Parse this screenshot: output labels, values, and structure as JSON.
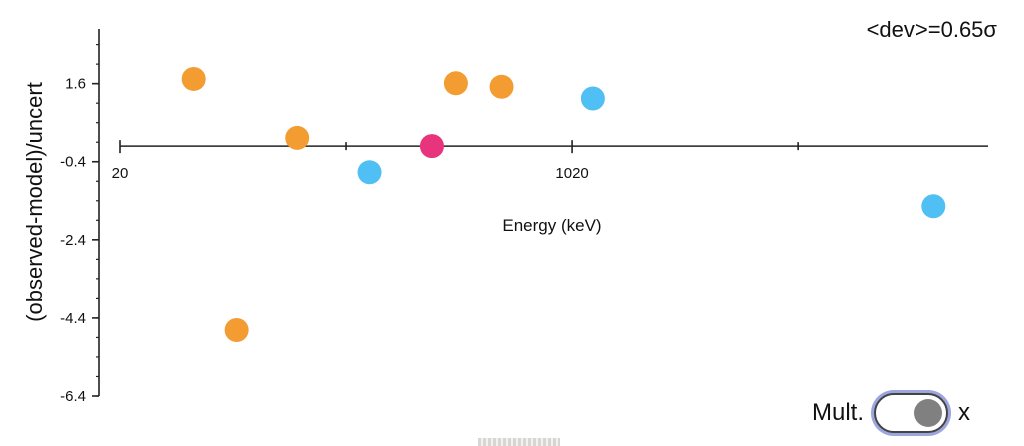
{
  "chart_data": {
    "type": "scatter",
    "title": "",
    "xlabel": "Energy (keV)",
    "ylabel": "(observed-model)/uncert",
    "xlim": [
      20,
      1940
    ],
    "ylim": [
      -6.4,
      2.9
    ],
    "x_tick_labels": [
      {
        "value": 20,
        "label": "20"
      },
      {
        "value": 1020,
        "label": "1020"
      }
    ],
    "x_minor_ticks": [
      520,
      1520
    ],
    "y_ticks": [
      1.6,
      -0.4,
      -2.4,
      -4.4,
      -6.4
    ],
    "y_tick_labels": [
      "1.6",
      "-0.4",
      "-2.4",
      "-4.4",
      "-6.4"
    ],
    "y_axis_range": [
      -6.4,
      3.0
    ],
    "annotation": "<dev>=0.65σ",
    "grid": false,
    "colors": {
      "orange": "#f39c32",
      "blue": "#4fbff4",
      "pink": "#e8347c"
    },
    "points": [
      {
        "x": 183,
        "y": 1.72,
        "color": "orange"
      },
      {
        "x": 278,
        "y": -4.71,
        "color": "orange"
      },
      {
        "x": 412,
        "y": 0.21,
        "color": "orange"
      },
      {
        "x": 572,
        "y": -0.67,
        "color": "blue"
      },
      {
        "x": 710,
        "y": 0.0,
        "color": "pink"
      },
      {
        "x": 763,
        "y": 1.61,
        "color": "orange"
      },
      {
        "x": 864,
        "y": 1.52,
        "color": "orange"
      },
      {
        "x": 1066,
        "y": 1.22,
        "color": "blue"
      },
      {
        "x": 1819,
        "y": -1.54,
        "color": "blue"
      }
    ]
  },
  "controls": {
    "mult_label": "Mult.",
    "x_label": "x",
    "toggle_on": true
  }
}
